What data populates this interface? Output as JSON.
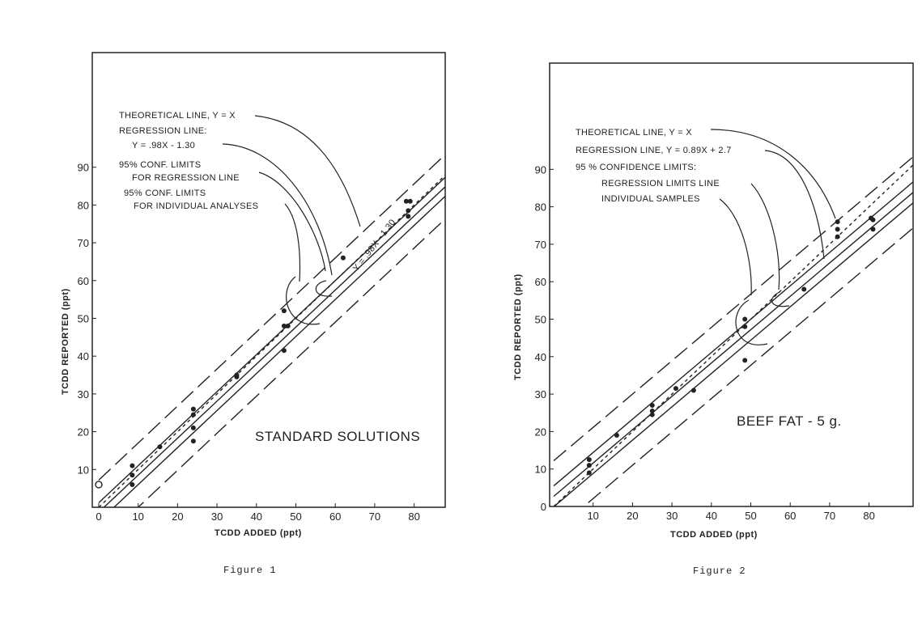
{
  "chart_data": [
    {
      "type": "scatter",
      "caption": "Figure 1",
      "plot_label": "STANDARD SOLUTIONS",
      "xlabel": "TCDD  ADDED (ppt)",
      "ylabel": "TCDD  REPORTED (ppt)",
      "xlim": [
        0,
        90
      ],
      "ylim": [
        0,
        120
      ],
      "xticks": [
        "0",
        "10",
        "20",
        "30",
        "40",
        "50",
        "60",
        "70",
        "80"
      ],
      "yticks": [
        "10",
        "20",
        "30",
        "40",
        "50",
        "60",
        "70",
        "80",
        "90"
      ],
      "annotations": [
        "THEORETICAL LINE, Y = X",
        "REGRESSION LINE:",
        "Y = .98X - 1.30",
        "95% CONF. LIMITS",
        "FOR REGRESSION LINE",
        "95% CONF. LIMITS",
        "FOR INDIVIDUAL ANALYSES"
      ],
      "line_label": "Y = .98X - 1.30",
      "regression": {
        "slope": 0.98,
        "intercept": -1.3
      },
      "points": [
        {
          "x": 0,
          "y": 6,
          "marker": "open"
        },
        {
          "x": 8.5,
          "y": 11
        },
        {
          "x": 8.5,
          "y": 8.5
        },
        {
          "x": 8.5,
          "y": 6
        },
        {
          "x": 15.5,
          "y": 16
        },
        {
          "x": 24,
          "y": 26
        },
        {
          "x": 24,
          "y": 24.5
        },
        {
          "x": 24,
          "y": 21
        },
        {
          "x": 24,
          "y": 17.5
        },
        {
          "x": 35,
          "y": 35
        },
        {
          "x": 35,
          "y": 34.5
        },
        {
          "x": 47,
          "y": 52
        },
        {
          "x": 47,
          "y": 48
        },
        {
          "x": 48,
          "y": 48
        },
        {
          "x": 47,
          "y": 41.5
        },
        {
          "x": 62,
          "y": 66
        },
        {
          "x": 78,
          "y": 81
        },
        {
          "x": 79,
          "y": 81
        },
        {
          "x": 78.5,
          "y": 78.5
        },
        {
          "x": 78.5,
          "y": 77
        }
      ]
    },
    {
      "type": "scatter",
      "caption": "Figure 2",
      "plot_label": "BEEF  FAT - 5 g.",
      "xlabel": "TCDD  ADDED (ppt)",
      "ylabel": "TCDD  REPORTED (ppt)",
      "xlim": [
        0,
        90
      ],
      "ylim": [
        0,
        117
      ],
      "xticks": [
        "10",
        "20",
        "30",
        "40",
        "50",
        "60",
        "70",
        "80"
      ],
      "yticks": [
        "0",
        "10",
        "20",
        "30",
        "40",
        "50",
        "60",
        "70",
        "80",
        "90"
      ],
      "annotations": [
        "THEORETICAL LINE, Y = X",
        "REGRESSION LINE, Y = 0.89X + 2.7",
        "95 % CONFIDENCE LIMITS:",
        "REGRESSION LIMITS   LINE",
        "INDIVIDUAL SAMPLES"
      ],
      "regression": {
        "slope": 0.89,
        "intercept": 2.7
      },
      "points": [
        {
          "x": 9,
          "y": 12.5
        },
        {
          "x": 9,
          "y": 11
        },
        {
          "x": 9,
          "y": 9
        },
        {
          "x": 16,
          "y": 19
        },
        {
          "x": 25,
          "y": 27
        },
        {
          "x": 25,
          "y": 25.5
        },
        {
          "x": 25,
          "y": 24.5
        },
        {
          "x": 31,
          "y": 31.5
        },
        {
          "x": 35.5,
          "y": 31
        },
        {
          "x": 48.5,
          "y": 50
        },
        {
          "x": 48.5,
          "y": 48
        },
        {
          "x": 48.5,
          "y": 39
        },
        {
          "x": 63.5,
          "y": 58
        },
        {
          "x": 72,
          "y": 76
        },
        {
          "x": 72,
          "y": 74
        },
        {
          "x": 72,
          "y": 72
        },
        {
          "x": 80.5,
          "y": 77
        },
        {
          "x": 81,
          "y": 76.5
        },
        {
          "x": 81,
          "y": 74
        }
      ]
    }
  ]
}
